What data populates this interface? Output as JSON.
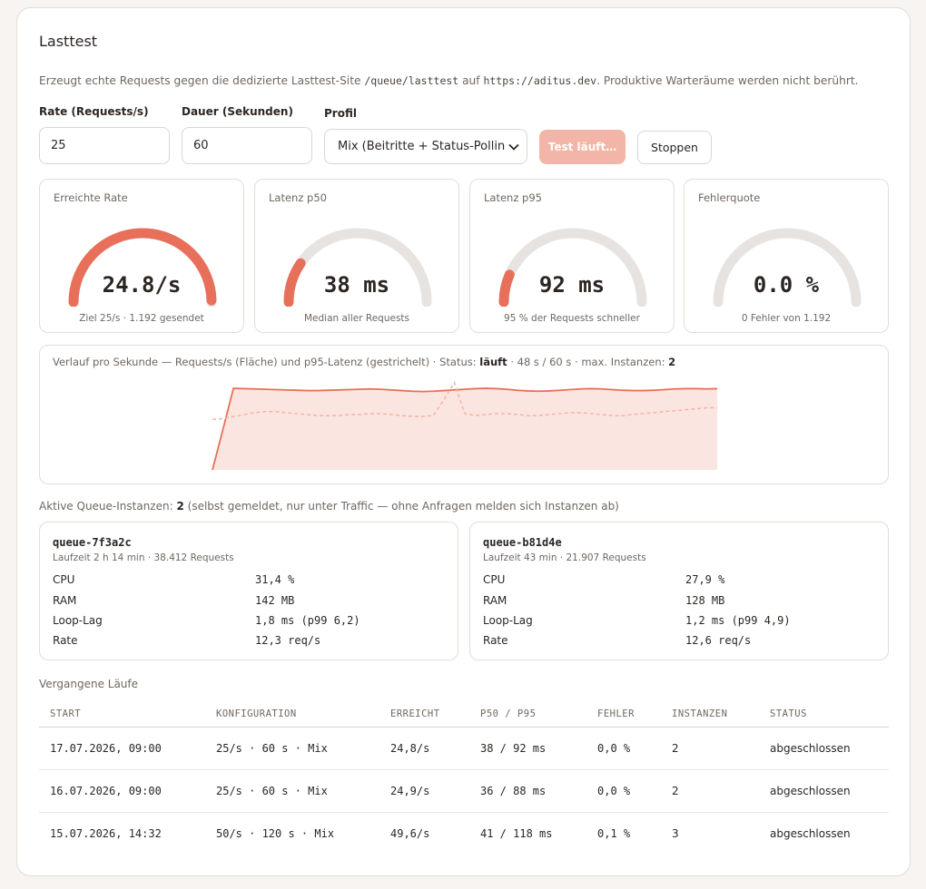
{
  "page": {
    "title": "Lasttest",
    "desc_prefix": "Erzeugt echte Requests gegen die dedizierte Lasttest-Site",
    "desc_path": "/queue/lasttest",
    "desc_mid": "auf",
    "desc_url": "https://aditus.dev",
    "desc_suffix": ". Produktive Warteräume werden nicht berührt."
  },
  "form": {
    "rate_label": "Rate (Requests/s)",
    "rate_value": "25",
    "duration_label": "Dauer (Sekunden)",
    "duration_value": "60",
    "profile_label": "Profil",
    "profile_value": "Mix (Beitritte + Status-Pollin",
    "run_button": "Test läuft…",
    "stop_button": "Stoppen"
  },
  "metrics": [
    {
      "title": "Erreichte Rate",
      "value": "24.8/s",
      "sub": "Ziel 25/s · 1.192 gesendet",
      "fraction": 0.992
    },
    {
      "title": "Latenz p50",
      "value": "38 ms",
      "sub": "Median aller Requests",
      "fraction": 0.19
    },
    {
      "title": "Latenz p95",
      "value": "92 ms",
      "sub": "95 % der Requests schneller",
      "fraction": 0.13
    },
    {
      "title": "Fehlerquote",
      "value": "0.0 %",
      "sub": "0 Fehler von 1.192",
      "fraction": 0.0
    }
  ],
  "chart": {
    "caption_prefix": "Verlauf pro Sekunde — Requests/s (Fläche) und p95-Latenz (gestrichelt) · Status:",
    "status": "läuft",
    "caption_mid": "· 48 s / 60 s · max. Instanzen:",
    "max_instances": "2"
  },
  "chart_data": {
    "type": "area",
    "x_max": 60,
    "series": [
      {
        "values": [
          0,
          12.5,
          25.2,
          25.1,
          25,
          24.9,
          24.8,
          24.7,
          24.6,
          24.5,
          24.5,
          24.6,
          24.7,
          24.8,
          24.9,
          25,
          24.9,
          24.7,
          24.5,
          24.3,
          24.2,
          24.3,
          24.5,
          24.7,
          24.9,
          25.1,
          25.2,
          25.1,
          24.9,
          24.6,
          24.4,
          24.3,
          24.4,
          24.6,
          24.8,
          25,
          25.1,
          25,
          24.8,
          24.6,
          24.5,
          24.5,
          24.6,
          24.8,
          25,
          25.1,
          25.1,
          25.0,
          25.1
        ]
      },
      {
        "values": [
          52,
          53,
          55,
          57,
          59,
          60,
          60,
          59,
          58,
          57,
          56,
          56,
          56,
          57,
          57,
          58,
          58,
          57,
          56,
          55,
          55,
          56,
          72,
          90,
          58,
          56,
          57,
          58,
          58,
          57,
          56,
          56,
          57,
          58,
          59,
          59,
          58,
          57,
          56,
          56,
          57,
          58,
          59,
          60,
          61,
          62,
          63,
          64,
          64
        ]
      }
    ]
  },
  "instances": {
    "label_prefix": "Aktive Queue-Instanzen:",
    "count": "2",
    "label_suffix": "(selbst gemeldet, nur unter Traffic — ohne Anfragen melden sich Instanzen ab)",
    "items": [
      {
        "name": "queue-7f3a2c",
        "sub": "Laufzeit 2 h 14 min · 38.412 Requests",
        "rows": [
          {
            "k": "CPU",
            "v": "31,4 %"
          },
          {
            "k": "RAM",
            "v": "142 MB"
          },
          {
            "k": "Loop-Lag",
            "v": "1,8 ms (p99 6,2)"
          },
          {
            "k": "Rate",
            "v": "12,3 req/s"
          }
        ]
      },
      {
        "name": "queue-b81d4e",
        "sub": "Laufzeit 43 min · 21.907 Requests",
        "rows": [
          {
            "k": "CPU",
            "v": "27,9 %"
          },
          {
            "k": "RAM",
            "v": "128 MB"
          },
          {
            "k": "Loop-Lag",
            "v": "1,2 ms (p99 4,9)"
          },
          {
            "k": "Rate",
            "v": "12,6 req/s"
          }
        ]
      }
    ]
  },
  "past": {
    "title": "Vergangene Läufe",
    "columns": [
      "START",
      "KONFIGURATION",
      "ERREICHT",
      "P50 / P95",
      "FEHLER",
      "INSTANZEN",
      "STATUS"
    ],
    "rows": [
      [
        "17.07.2026, 09:00",
        "25/s · 60 s · Mix",
        "24,8/s",
        "38 / 92 ms",
        "0,0 %",
        "2",
        "abgeschlossen"
      ],
      [
        "16.07.2026, 09:00",
        "25/s · 60 s · Mix",
        "24,9/s",
        "36 / 88 ms",
        "0,0 %",
        "2",
        "abgeschlossen"
      ],
      [
        "15.07.2026, 14:32",
        "50/s · 120 s · Mix",
        "49,6/s",
        "41 / 118 ms",
        "0,1 %",
        "3",
        "abgeschlossen"
      ]
    ]
  },
  "colors": {
    "accent": "#e8705a",
    "accent_light": "#f2b5a7",
    "track": "#e6e3e0",
    "area": "#fbe5e0"
  }
}
